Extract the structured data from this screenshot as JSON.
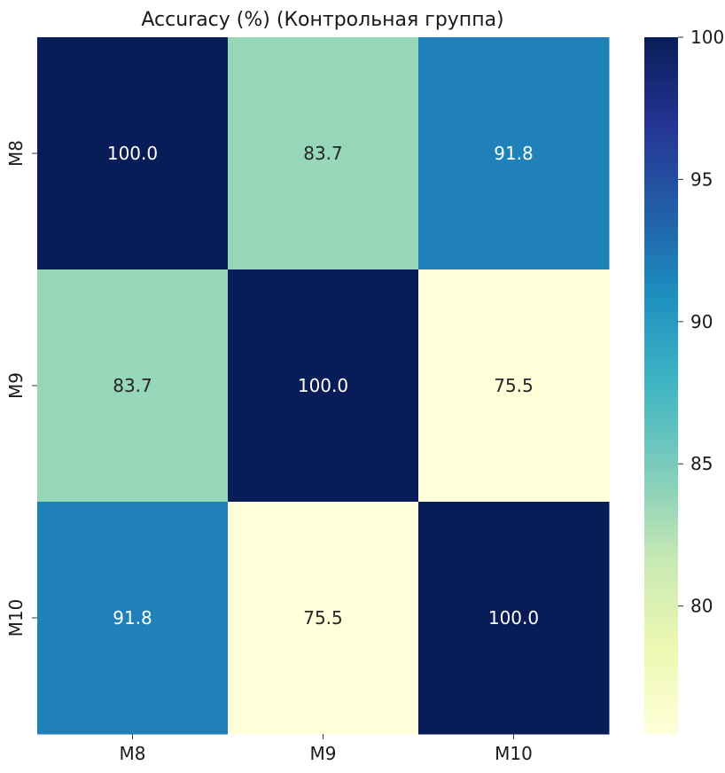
{
  "chart_data": {
    "type": "heatmap",
    "title": "Accuracy (%) (Контрольная группа)",
    "x_categories": [
      "M8",
      "M9",
      "M10"
    ],
    "y_categories": [
      "M8",
      "M9",
      "M10"
    ],
    "values": [
      [
        100.0,
        83.7,
        91.8
      ],
      [
        83.7,
        100.0,
        75.5
      ],
      [
        91.8,
        75.5,
        100.0
      ]
    ],
    "value_format": "0.1f",
    "colormap": "YlGnBu",
    "colormap_stops": [
      "#ffffd9",
      "#edf8b1",
      "#c7e9b4",
      "#7fcdbb",
      "#41b6c4",
      "#1d91c0",
      "#225ea8",
      "#253494",
      "#081d58"
    ],
    "vmin": 75.5,
    "vmax": 100.0,
    "colorbar_ticks": [
      80,
      85,
      90,
      95,
      100
    ],
    "xlabel": "",
    "ylabel": ""
  }
}
